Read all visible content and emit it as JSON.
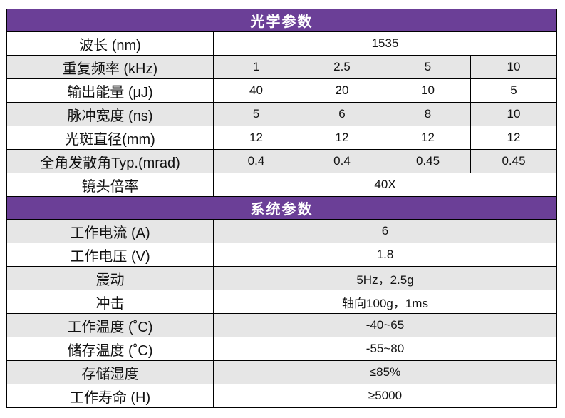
{
  "optical": {
    "title": "光学参数",
    "wavelength": {
      "label": "波长 (nm)",
      "value": "1535"
    },
    "rep_rate": {
      "label": "重复频率 (kHz)",
      "values": [
        "1",
        "2.5",
        "5",
        "10"
      ]
    },
    "energy": {
      "label": "输出能量 (μJ)",
      "values": [
        "40",
        "20",
        "10",
        "5"
      ]
    },
    "pulse_width": {
      "label": "脉冲宽度 (ns)",
      "values": [
        "5",
        "6",
        "8",
        "10"
      ]
    },
    "spot_diameter": {
      "label": "光斑直径(mm)",
      "values": [
        "12",
        "12",
        "12",
        "12"
      ]
    },
    "divergence": {
      "label": "全角发散角Typ.(mrad)",
      "values": [
        "0.4",
        "0.4",
        "0.45",
        "0.45"
      ]
    },
    "magnification": {
      "label": "镜头倍率",
      "value": "40X"
    }
  },
  "system": {
    "title": "系统参数",
    "rows": [
      {
        "label": "工作电流  (A)",
        "value": "6"
      },
      {
        "label": "工作电压  (V)",
        "value": "1.8"
      },
      {
        "label": "震动",
        "value": "5Hz，2.5g"
      },
      {
        "label": "冲击",
        "value": "轴向100g，1ms"
      },
      {
        "label": "工作温度 (˚C)",
        "value": "-40~65"
      },
      {
        "label": "储存温度 (˚C)",
        "value": "-55~80"
      },
      {
        "label": "存储湿度",
        "value": "≤85%"
      },
      {
        "label": "工作寿命 (H)",
        "value": "≥5000"
      }
    ]
  },
  "colors": {
    "header_bg": "#6b3f97",
    "header_text": "#ffffff",
    "row_shade": "#e6e6e6"
  }
}
